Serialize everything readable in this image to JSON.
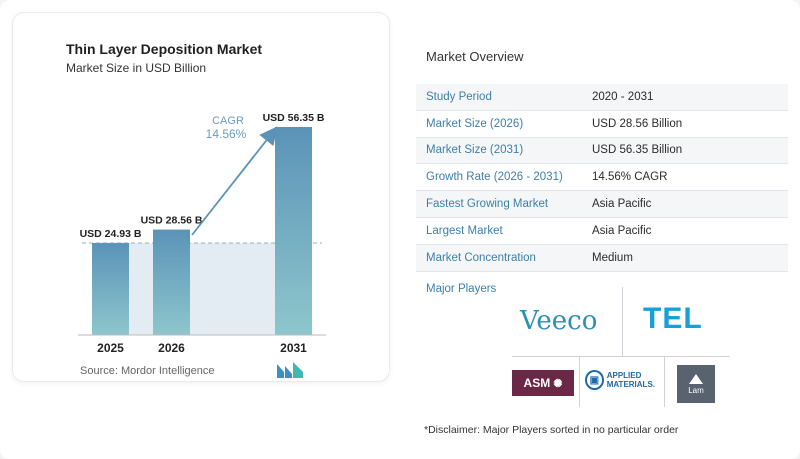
{
  "chart_data": {
    "type": "bar",
    "title": "Thin Layer Deposition Market",
    "subtitle": "Market Size in USD Billion",
    "categories": [
      "2025",
      "2026",
      "2031"
    ],
    "values": [
      24.93,
      28.56,
      56.35
    ],
    "data_labels": [
      "USD 24.93 B",
      "USD 28.56 B",
      "USD 56.35 B"
    ],
    "cagr_label": "CAGR",
    "cagr_value": "14.56%",
    "ylim": [
      0,
      60
    ],
    "grid": false,
    "colors": {
      "bar_top": "#5b93b8",
      "bar_bottom": "#8ec6cc",
      "baseline_fill": "#e3ecf3",
      "arrow": "#5b93b8"
    }
  },
  "source": "Source:  Mordor Intelligence",
  "overview": {
    "title": "Market Overview",
    "rows": [
      {
        "label": "Study Period",
        "value": "2020 - 2031"
      },
      {
        "label": "Market Size (2026)",
        "value": "USD 28.56 Billion"
      },
      {
        "label": "Market Size (2031)",
        "value": "USD 56.35 Billion"
      },
      {
        "label": "Growth Rate (2026 - 2031)",
        "value": "14.56% CAGR"
      },
      {
        "label": "Fastest Growing Market",
        "value": "Asia Pacific"
      },
      {
        "label": "Largest Market",
        "value": "Asia Pacific"
      },
      {
        "label": "Market Concentration",
        "value": "Medium"
      }
    ]
  },
  "players": {
    "label": "Major Players",
    "logos": {
      "veeco": "Veeco",
      "tel": "TEL",
      "asm": "ASM",
      "applied_line1": "APPLIED",
      "applied_line2": "MATERIALS.",
      "lam": "Lam"
    }
  },
  "disclaimer": "*Disclaimer: Major Players sorted in no particular order"
}
